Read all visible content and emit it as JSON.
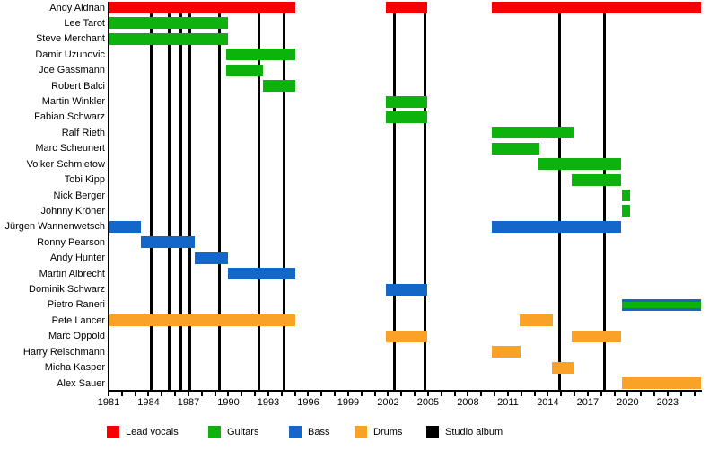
{
  "chart_data": {
    "type": "timeline",
    "description": "Band line-up timeline: members (rows) vs years, colored by role; vertical black lines mark studio albums.",
    "x_axis": {
      "min": 1981,
      "max": 2025.5,
      "minor_tick_every": 1,
      "label_every": 3,
      "tick_labels": [
        "1981",
        "1984",
        "1987",
        "1990",
        "1993",
        "1996",
        "1999",
        "2002",
        "2005",
        "2008",
        "2011",
        "2014",
        "2017",
        "2020",
        "2023"
      ]
    },
    "legend": [
      {
        "key": "lead_vocals",
        "label": "Lead vocals",
        "color": "#f70000"
      },
      {
        "key": "guitars",
        "label": "Guitars",
        "color": "#0db20d"
      },
      {
        "key": "bass",
        "label": "Bass",
        "color": "#1467c8"
      },
      {
        "key": "drums",
        "label": "Drums",
        "color": "#f9a227"
      },
      {
        "key": "studio_album",
        "label": "Studio album",
        "color": "#000000"
      }
    ],
    "studio_albums": [
      1984.2,
      1985.55,
      1986.4,
      1987.1,
      1989.35,
      1992.3,
      1994.15,
      2002.45,
      2004.75,
      2014.85,
      2018.25
    ],
    "members": [
      {
        "name": "Andy Aldrian",
        "segments": [
          {
            "roles": [
              "lead_vocals"
            ],
            "start": 1981,
            "end": 1995
          },
          {
            "roles": [
              "lead_vocals"
            ],
            "start": 2001.85,
            "end": 2004.95
          },
          {
            "roles": [
              "lead_vocals"
            ],
            "start": 2009.8,
            "end": 2025.5
          }
        ]
      },
      {
        "name": "Lee Tarot",
        "segments": [
          {
            "roles": [
              "guitars"
            ],
            "start": 1981,
            "end": 1990
          }
        ]
      },
      {
        "name": "Steve Merchant",
        "segments": [
          {
            "roles": [
              "guitars"
            ],
            "start": 1981,
            "end": 1990
          }
        ]
      },
      {
        "name": "Damir Uzunovic",
        "segments": [
          {
            "roles": [
              "guitars"
            ],
            "start": 1989.85,
            "end": 1995
          }
        ]
      },
      {
        "name": "Joe Gassmann",
        "segments": [
          {
            "roles": [
              "guitars"
            ],
            "start": 1989.85,
            "end": 1992.6
          }
        ]
      },
      {
        "name": "Robert Balci",
        "segments": [
          {
            "roles": [
              "guitars"
            ],
            "start": 1992.6,
            "end": 1995
          }
        ]
      },
      {
        "name": "Martin Winkler",
        "segments": [
          {
            "roles": [
              "guitars"
            ],
            "start": 2001.85,
            "end": 2004.95
          }
        ]
      },
      {
        "name": "Fabian Schwarz",
        "segments": [
          {
            "roles": [
              "guitars"
            ],
            "start": 2001.85,
            "end": 2004.95
          }
        ]
      },
      {
        "name": "Ralf Rieth",
        "segments": [
          {
            "roles": [
              "guitars"
            ],
            "start": 2009.8,
            "end": 2015.9
          }
        ]
      },
      {
        "name": "Marc Scheunert",
        "segments": [
          {
            "roles": [
              "guitars"
            ],
            "start": 2009.8,
            "end": 2013.35
          }
        ]
      },
      {
        "name": "Volker Schmietow",
        "segments": [
          {
            "roles": [
              "guitars"
            ],
            "start": 2013.3,
            "end": 2019.5
          }
        ]
      },
      {
        "name": "Tobi Kipp",
        "segments": [
          {
            "roles": [
              "guitars"
            ],
            "start": 2015.8,
            "end": 2019.5
          }
        ]
      },
      {
        "name": "Nick Berger",
        "segments": [
          {
            "roles": [
              "guitars"
            ],
            "start": 2019.6,
            "end": 2020.15
          }
        ]
      },
      {
        "name": "Johnny Kröner",
        "segments": [
          {
            "roles": [
              "guitars"
            ],
            "start": 2019.6,
            "end": 2020.15
          }
        ]
      },
      {
        "name": "Jürgen Wannenwetsch",
        "segments": [
          {
            "roles": [
              "bass"
            ],
            "start": 1981,
            "end": 1983.4
          },
          {
            "roles": [
              "bass"
            ],
            "start": 2009.8,
            "end": 2019.5
          }
        ]
      },
      {
        "name": "Ronny Pearson",
        "segments": [
          {
            "roles": [
              "bass"
            ],
            "start": 1983.4,
            "end": 1987.45
          }
        ]
      },
      {
        "name": "Andy Hunter",
        "segments": [
          {
            "roles": [
              "bass"
            ],
            "start": 1987.45,
            "end": 1990
          }
        ]
      },
      {
        "name": "Martin Albrecht",
        "segments": [
          {
            "roles": [
              "bass"
            ],
            "start": 1990,
            "end": 1995
          }
        ]
      },
      {
        "name": "Dominik Schwarz",
        "segments": [
          {
            "roles": [
              "bass"
            ],
            "start": 2001.85,
            "end": 2004.95
          }
        ]
      },
      {
        "name": "Pietro Raneri",
        "segments": [
          {
            "roles": [
              "bass",
              "guitars"
            ],
            "start": 2019.6,
            "end": 2025.5
          }
        ]
      },
      {
        "name": "Pete Lancer",
        "segments": [
          {
            "roles": [
              "drums"
            ],
            "start": 1981,
            "end": 1995
          },
          {
            "roles": [
              "drums"
            ],
            "start": 2011.85,
            "end": 2014.4
          }
        ]
      },
      {
        "name": "Marc Oppold",
        "segments": [
          {
            "roles": [
              "drums"
            ],
            "start": 2001.85,
            "end": 2004.95
          },
          {
            "roles": [
              "drums"
            ],
            "start": 2015.8,
            "end": 2019.5
          }
        ]
      },
      {
        "name": "Harry Reischmann",
        "segments": [
          {
            "roles": [
              "drums"
            ],
            "start": 2009.8,
            "end": 2011.95
          }
        ]
      },
      {
        "name": "Micha Kasper",
        "segments": [
          {
            "roles": [
              "drums"
            ],
            "start": 2014.3,
            "end": 2015.9
          }
        ]
      },
      {
        "name": "Alex Sauer",
        "segments": [
          {
            "roles": [
              "drums"
            ],
            "start": 2019.6,
            "end": 2025.5
          }
        ]
      }
    ]
  }
}
